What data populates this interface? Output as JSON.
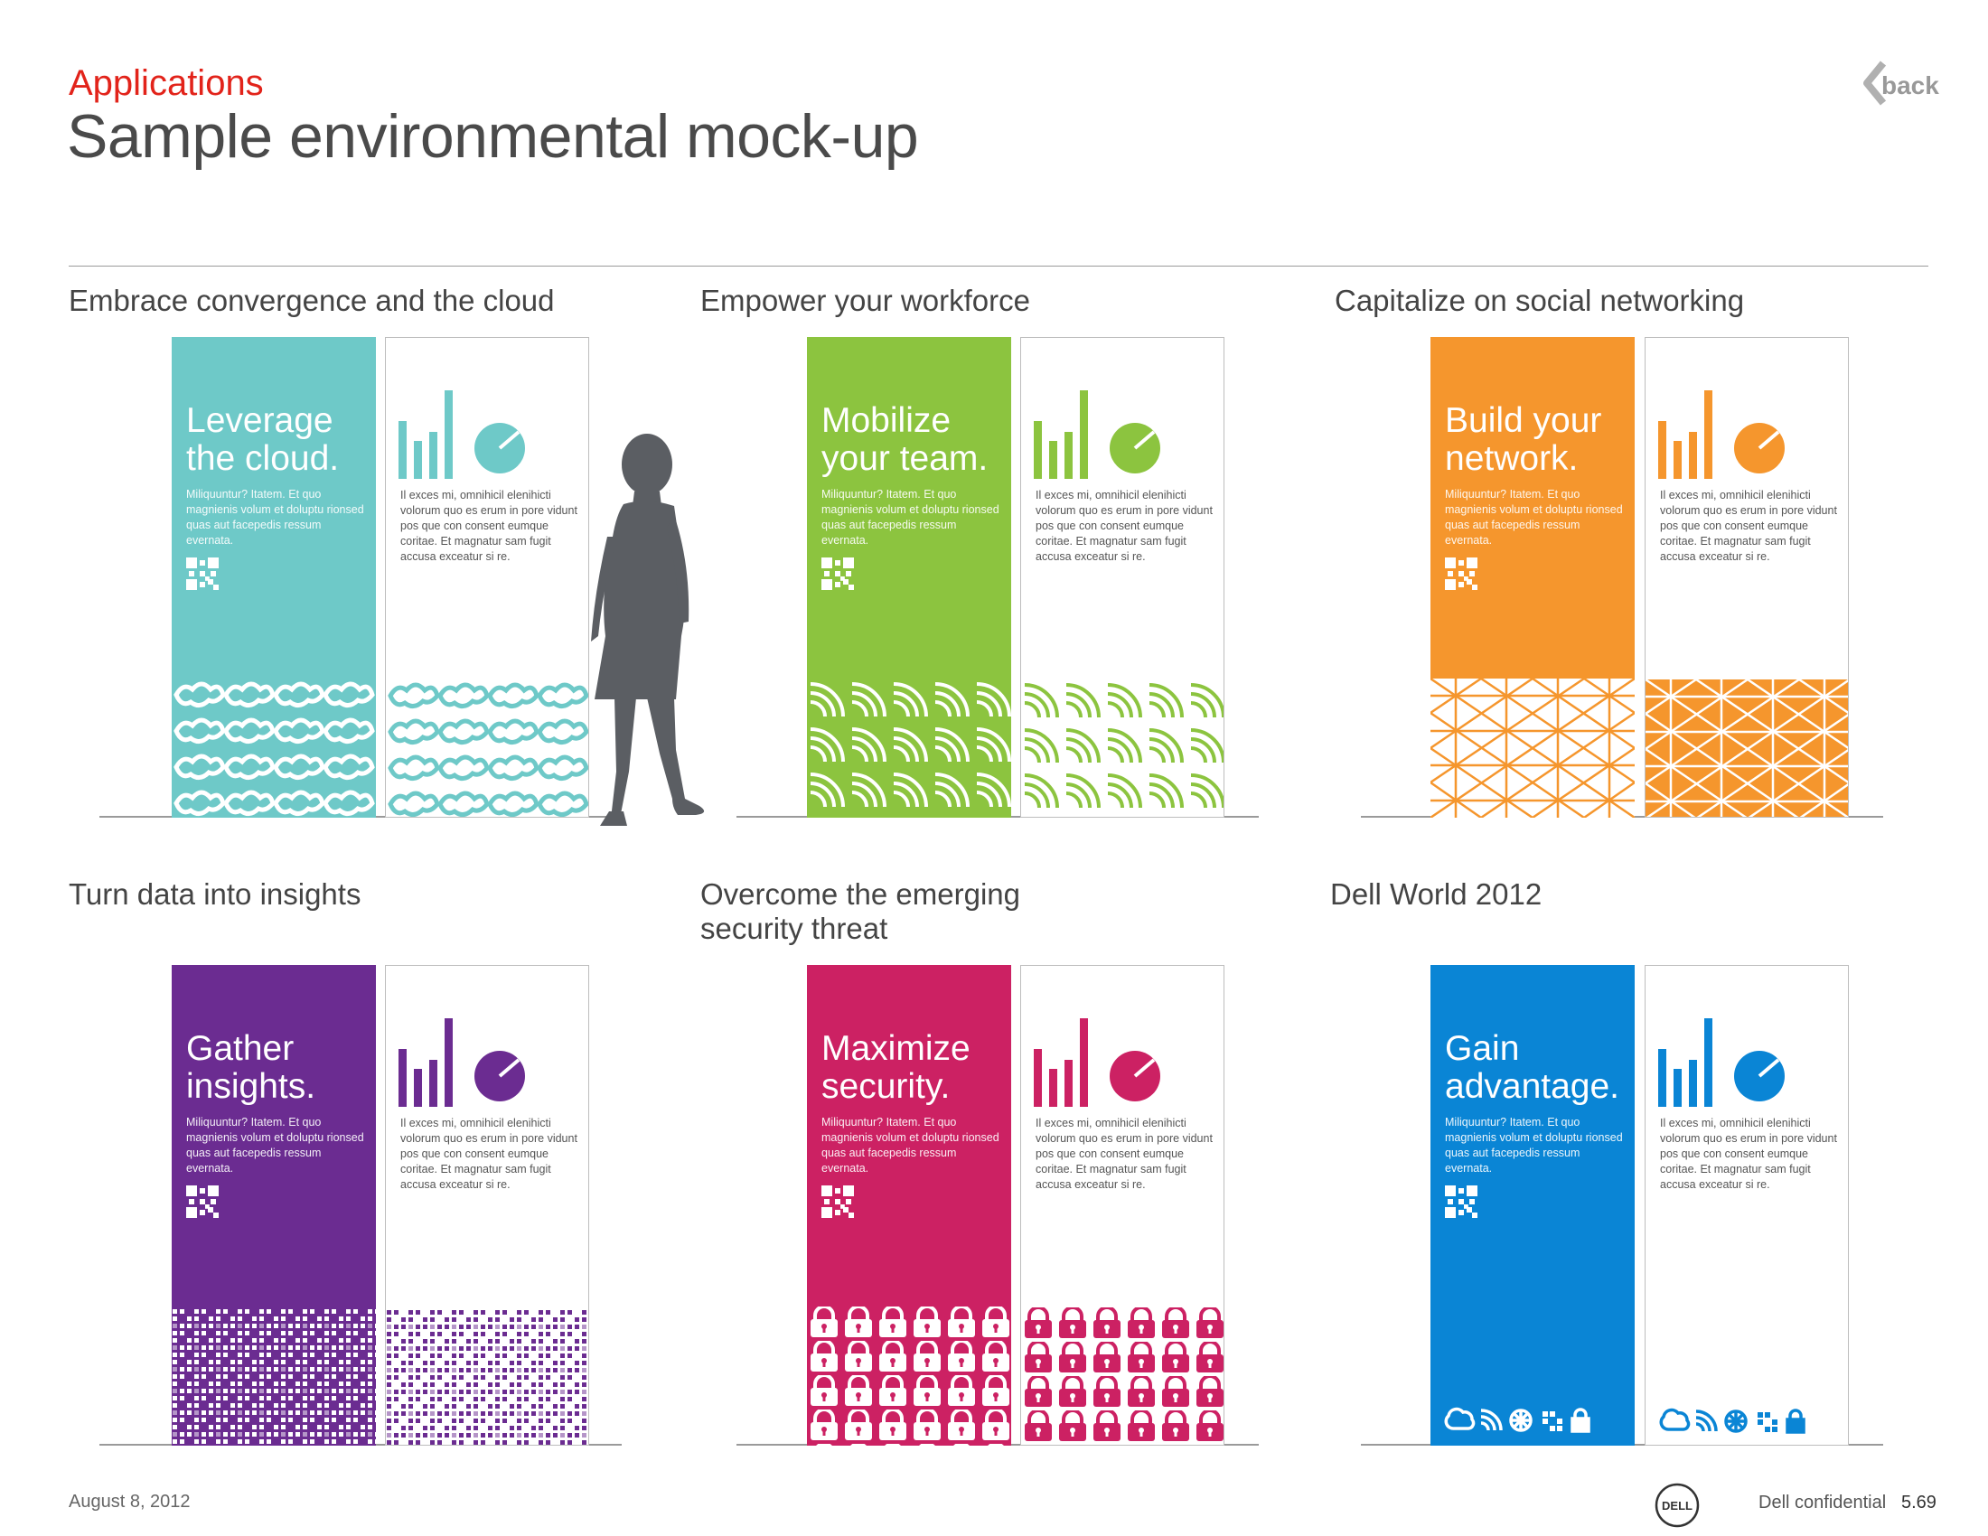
{
  "header": {
    "section": "Applications",
    "title": "Sample environmental mock-up",
    "back_label": "back"
  },
  "panel_copy": {
    "color_body": "Miliquuntur? Itatem. Et quo magnienis volum et doluptu rionsed quas aut facepedis ressum evernata.",
    "white_body": "Il exces mi, omnihicil elenihicti volorum quo es erum in pore vidunt pos que con consent eumque coritae. Et magnatur sam fugit accusa exceatur si re."
  },
  "blocks": [
    {
      "title": "Embrace convergence and the cloud",
      "headline_line1": "Leverage",
      "headline_line2": "the cloud.",
      "color": "#6ec9c8",
      "pattern": "cloud"
    },
    {
      "title": "Empower your workforce",
      "headline_line1": "Mobilize",
      "headline_line2": "your team.",
      "color": "#8cc43f",
      "pattern": "wifi"
    },
    {
      "title": "Capitalize on social networking",
      "headline_line1": "Build your",
      "headline_line2": "network.",
      "color": "#f5962d",
      "pattern": "web"
    },
    {
      "title": "Turn data into insights",
      "headline_line1": "Gather",
      "headline_line2": "insights.",
      "color": "#6b2c91",
      "pattern": "bits"
    },
    {
      "title_line1": "Overcome the emerging",
      "title_line2": "security threat",
      "headline_line1": "Maximize",
      "headline_line2": "security.",
      "color": "#cc2163",
      "pattern": "lock"
    },
    {
      "title": "Dell World 2012",
      "headline_line1": "Gain",
      "headline_line2": "advantage.",
      "color": "#0a85d5",
      "pattern": "icons"
    }
  ],
  "icons": [
    "cloud-icon",
    "wifi-icon",
    "web-icon",
    "data-icon",
    "lock-icon",
    "bar-chart-icon",
    "pie-chart-icon",
    "qr-code-icon",
    "person-silhouette"
  ],
  "footer": {
    "date": "August 8, 2012",
    "confidential": "Dell confidential",
    "page": "5.69",
    "logo_text": "DELL"
  }
}
